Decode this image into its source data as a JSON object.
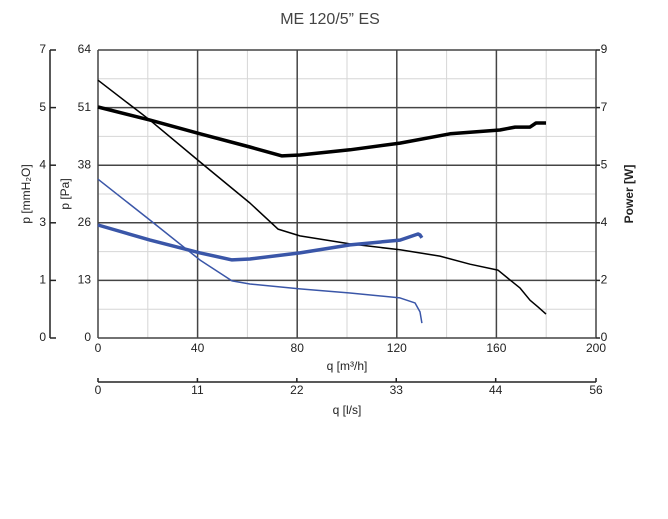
{
  "chart_data": {
    "type": "line",
    "title": "ME 120/5” ES",
    "xlabel": "q [m³/h]",
    "ylabel": "p [Pa]",
    "y2label": "Power [W]",
    "y3label": "p [mmH₂O]",
    "x2label": "q [l/s]",
    "xlim": [
      0,
      200
    ],
    "xticks": [
      0,
      40,
      80,
      120,
      160,
      200
    ],
    "xticks_minor": [
      20,
      60,
      100,
      140,
      180
    ],
    "ylim": [
      0,
      64
    ],
    "yticks": [
      0,
      {
        "value": 12.8,
        "label": "13"
      },
      {
        "value": 25.6,
        "label": "26"
      },
      {
        "value": 38.4,
        "label": "38"
      },
      {
        "value": 51.2,
        "label": "51"
      },
      64
    ],
    "yticks_minor": [
      6.4,
      19.2,
      32,
      44.8,
      57.6
    ],
    "y2lim": [
      0,
      9
    ],
    "y2ticks": [
      0,
      {
        "value": 1.8,
        "label": "2"
      },
      {
        "value": 3.6,
        "label": "4"
      },
      {
        "value": 5.4,
        "label": "5"
      },
      {
        "value": 7.2,
        "label": "7"
      },
      9
    ],
    "y3lim": [
      0,
      6.5
    ],
    "y3ticks": [
      0,
      {
        "value": 1.3,
        "label": "1"
      },
      {
        "value": 2.6,
        "label": "3"
      },
      {
        "value": 3.9,
        "label": "4"
      },
      {
        "value": 5.2,
        "label": "5"
      },
      {
        "value": 6.5,
        "label": "7"
      }
    ],
    "x2lim": [
      0,
      55.6
    ],
    "x2ticks": [
      0,
      {
        "value": 11.1,
        "label": "11"
      },
      {
        "value": 22.2,
        "label": "22"
      },
      {
        "value": 33.3,
        "label": "33"
      },
      {
        "value": 44.4,
        "label": "44"
      },
      {
        "value": 55.6,
        "label": "56"
      }
    ],
    "grid": true,
    "series": [
      {
        "color": "#000000",
        "width": 1.5,
        "axis": "y",
        "x": [
          0,
          20.9,
          41,
          61,
          72.3,
          81.1,
          101.2,
          121.3,
          137.3,
          149.4,
          160.6,
          169.5,
          173.5,
          176.7,
          179.9
        ],
        "values": [
          57.3,
          48.4,
          39.1,
          30.0,
          24.2,
          22.7,
          20.9,
          19.6,
          18.2,
          16.4,
          15.1,
          11.1,
          8.4,
          6.9,
          5.3
        ]
      },
      {
        "color": "#000000",
        "width": 3.5,
        "axis": "y2",
        "x": [
          0,
          20.9,
          41,
          61,
          73.9,
          81.1,
          101.2,
          121.3,
          141.4,
          161.4,
          167.5,
          173.5,
          175.9,
          179.9
        ],
        "values": [
          7.22,
          6.81,
          6.38,
          5.97,
          5.69,
          5.72,
          5.88,
          6.09,
          6.38,
          6.5,
          6.59,
          6.59,
          6.72,
          6.72
        ]
      },
      {
        "color": "#3a56a8",
        "width": 1.5,
        "axis": "y",
        "x": [
          0,
          20.9,
          41,
          53.8,
          61,
          81.1,
          101.2,
          121.3,
          127.3,
          129.3,
          130.1
        ],
        "values": [
          35.3,
          26.2,
          17.3,
          12.7,
          12.0,
          10.9,
          10.0,
          8.9,
          7.8,
          5.8,
          3.3
        ]
      },
      {
        "color": "#3a56a8",
        "width": 3.5,
        "axis": "y2",
        "x": [
          0,
          20.9,
          41,
          53.8,
          61,
          81.1,
          101.2,
          121.3,
          128.5,
          129.3,
          130.1
        ],
        "values": [
          3.53,
          3.06,
          2.66,
          2.44,
          2.47,
          2.66,
          2.91,
          3.06,
          3.25,
          3.22,
          3.13
        ]
      }
    ]
  }
}
